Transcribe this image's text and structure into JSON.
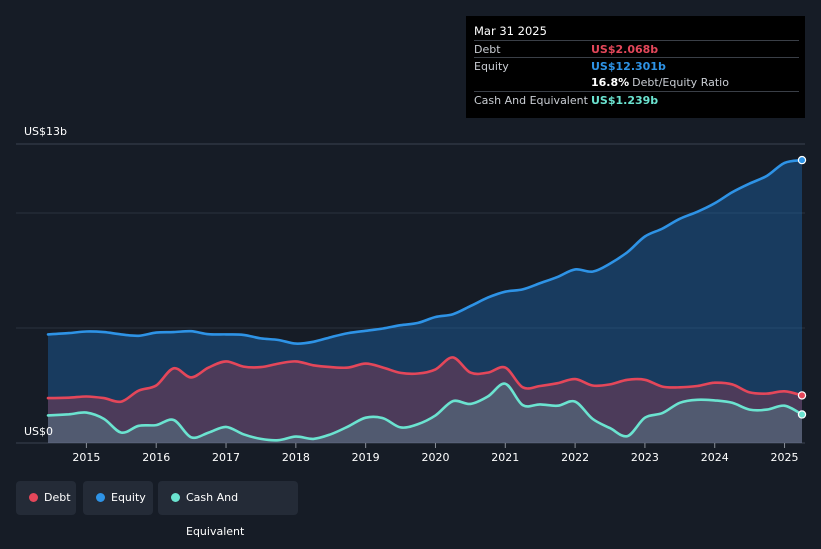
{
  "tooltip": {
    "date": "Mar 31 2025",
    "rows": [
      {
        "label": "Debt",
        "value": "US$2.068b",
        "color": "#e4475a"
      },
      {
        "label": "Equity",
        "value": "US$12.301b",
        "color": "#2e93e6"
      },
      {
        "label": "",
        "value": "16.8%",
        "suffix": "Debt/Equity Ratio",
        "color": "#ffffff"
      },
      {
        "label": "Cash And Equivalent",
        "value": "US$1.239b",
        "color": "#6be3d0"
      }
    ]
  },
  "legend": [
    {
      "label": "Debt",
      "color": "#e4475a"
    },
    {
      "label": "Equity",
      "color": "#2e93e6"
    },
    {
      "label": "Cash And Equivalent",
      "color": "#6be3d0"
    }
  ],
  "chart_data": {
    "type": "area",
    "title": "",
    "xlabel": "",
    "ylabel": "",
    "y_axis_labels": [
      "US$13b",
      "US$0"
    ],
    "ylim": [
      0,
      13
    ],
    "xlim": [
      2014.45,
      2025.3
    ],
    "x_ticks": [
      "2015",
      "2016",
      "2017",
      "2018",
      "2019",
      "2020",
      "2021",
      "2022",
      "2023",
      "2024",
      "2025"
    ],
    "grid": true,
    "series": [
      {
        "name": "Equity",
        "color": "#2e93e6",
        "points": [
          [
            2014.45,
            4.72
          ],
          [
            2014.75,
            4.78
          ],
          [
            2015.0,
            4.85
          ],
          [
            2015.25,
            4.82
          ],
          [
            2015.5,
            4.72
          ],
          [
            2015.75,
            4.66
          ],
          [
            2016.0,
            4.8
          ],
          [
            2016.25,
            4.82
          ],
          [
            2016.5,
            4.86
          ],
          [
            2016.75,
            4.73
          ],
          [
            2017.0,
            4.72
          ],
          [
            2017.25,
            4.7
          ],
          [
            2017.5,
            4.55
          ],
          [
            2017.75,
            4.48
          ],
          [
            2018.0,
            4.32
          ],
          [
            2018.25,
            4.4
          ],
          [
            2018.5,
            4.6
          ],
          [
            2018.75,
            4.78
          ],
          [
            2019.0,
            4.88
          ],
          [
            2019.25,
            4.98
          ],
          [
            2019.5,
            5.12
          ],
          [
            2019.75,
            5.22
          ],
          [
            2020.0,
            5.48
          ],
          [
            2020.25,
            5.6
          ],
          [
            2020.5,
            5.95
          ],
          [
            2020.75,
            6.32
          ],
          [
            2021.0,
            6.58
          ],
          [
            2021.25,
            6.68
          ],
          [
            2021.5,
            6.95
          ],
          [
            2021.75,
            7.22
          ],
          [
            2022.0,
            7.55
          ],
          [
            2022.25,
            7.45
          ],
          [
            2022.5,
            7.8
          ],
          [
            2022.75,
            8.3
          ],
          [
            2023.0,
            8.98
          ],
          [
            2023.25,
            9.32
          ],
          [
            2023.5,
            9.75
          ],
          [
            2023.75,
            10.05
          ],
          [
            2024.0,
            10.42
          ],
          [
            2024.25,
            10.9
          ],
          [
            2024.5,
            11.28
          ],
          [
            2024.75,
            11.62
          ],
          [
            2025.0,
            12.18
          ],
          [
            2025.25,
            12.3
          ]
        ]
      },
      {
        "name": "Debt",
        "color": "#e4475a",
        "points": [
          [
            2014.45,
            1.95
          ],
          [
            2014.75,
            1.97
          ],
          [
            2015.0,
            2.02
          ],
          [
            2015.25,
            1.95
          ],
          [
            2015.5,
            1.8
          ],
          [
            2015.75,
            2.28
          ],
          [
            2016.0,
            2.5
          ],
          [
            2016.25,
            3.25
          ],
          [
            2016.5,
            2.85
          ],
          [
            2016.75,
            3.28
          ],
          [
            2017.0,
            3.55
          ],
          [
            2017.25,
            3.32
          ],
          [
            2017.5,
            3.3
          ],
          [
            2017.75,
            3.45
          ],
          [
            2018.0,
            3.55
          ],
          [
            2018.25,
            3.38
          ],
          [
            2018.5,
            3.3
          ],
          [
            2018.75,
            3.28
          ],
          [
            2019.0,
            3.45
          ],
          [
            2019.25,
            3.28
          ],
          [
            2019.5,
            3.05
          ],
          [
            2019.75,
            3.02
          ],
          [
            2020.0,
            3.2
          ],
          [
            2020.25,
            3.72
          ],
          [
            2020.5,
            3.06
          ],
          [
            2020.75,
            3.06
          ],
          [
            2021.0,
            3.28
          ],
          [
            2021.25,
            2.42
          ],
          [
            2021.5,
            2.48
          ],
          [
            2021.75,
            2.6
          ],
          [
            2022.0,
            2.78
          ],
          [
            2022.25,
            2.5
          ],
          [
            2022.5,
            2.55
          ],
          [
            2022.75,
            2.75
          ],
          [
            2023.0,
            2.75
          ],
          [
            2023.25,
            2.45
          ],
          [
            2023.5,
            2.42
          ],
          [
            2023.75,
            2.48
          ],
          [
            2024.0,
            2.62
          ],
          [
            2024.25,
            2.55
          ],
          [
            2024.5,
            2.2
          ],
          [
            2024.75,
            2.15
          ],
          [
            2025.0,
            2.25
          ],
          [
            2025.25,
            2.07
          ]
        ]
      },
      {
        "name": "Cash And Equivalent",
        "color": "#6be3d0",
        "points": [
          [
            2014.45,
            1.2
          ],
          [
            2014.75,
            1.25
          ],
          [
            2015.0,
            1.32
          ],
          [
            2015.25,
            1.05
          ],
          [
            2015.5,
            0.45
          ],
          [
            2015.75,
            0.75
          ],
          [
            2016.0,
            0.78
          ],
          [
            2016.25,
            1.0
          ],
          [
            2016.5,
            0.25
          ],
          [
            2016.75,
            0.45
          ],
          [
            2017.0,
            0.7
          ],
          [
            2017.25,
            0.38
          ],
          [
            2017.5,
            0.18
          ],
          [
            2017.75,
            0.12
          ],
          [
            2018.0,
            0.28
          ],
          [
            2018.25,
            0.18
          ],
          [
            2018.5,
            0.38
          ],
          [
            2018.75,
            0.72
          ],
          [
            2019.0,
            1.1
          ],
          [
            2019.25,
            1.08
          ],
          [
            2019.5,
            0.68
          ],
          [
            2019.75,
            0.82
          ],
          [
            2020.0,
            1.2
          ],
          [
            2020.25,
            1.82
          ],
          [
            2020.5,
            1.7
          ],
          [
            2020.75,
            2.02
          ],
          [
            2021.0,
            2.58
          ],
          [
            2021.25,
            1.65
          ],
          [
            2021.5,
            1.68
          ],
          [
            2021.75,
            1.62
          ],
          [
            2022.0,
            1.8
          ],
          [
            2022.25,
            1.05
          ],
          [
            2022.5,
            0.65
          ],
          [
            2022.75,
            0.3
          ],
          [
            2023.0,
            1.1
          ],
          [
            2023.25,
            1.3
          ],
          [
            2023.5,
            1.75
          ],
          [
            2023.75,
            1.88
          ],
          [
            2024.0,
            1.85
          ],
          [
            2024.25,
            1.75
          ],
          [
            2024.5,
            1.45
          ],
          [
            2024.75,
            1.45
          ],
          [
            2025.0,
            1.62
          ],
          [
            2025.25,
            1.24
          ]
        ]
      }
    ]
  }
}
